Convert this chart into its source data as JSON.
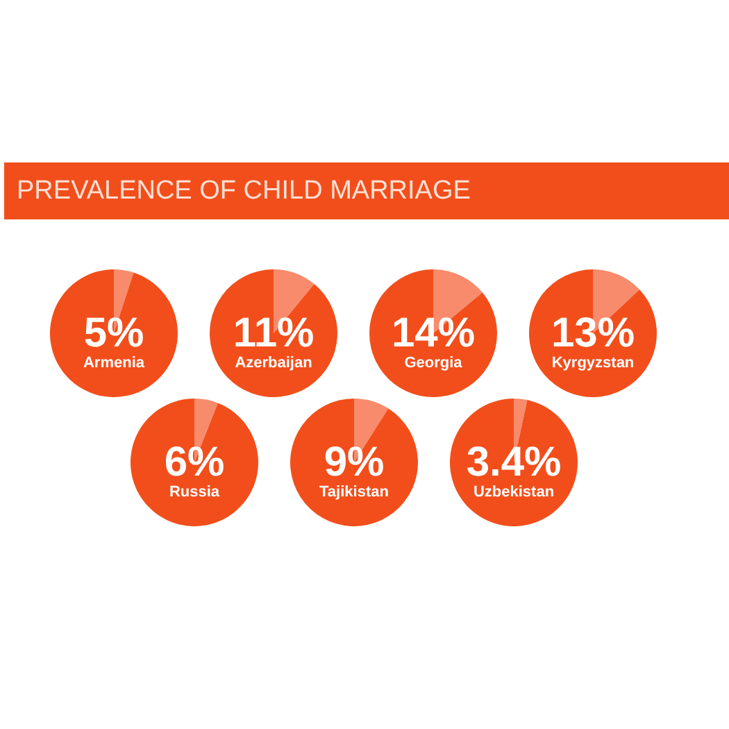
{
  "chart_data": [
    {
      "type": "other",
      "title": "PREVALENCE OF CHILD MARRIAGE",
      "color": "#f24e1b"
    },
    {
      "type": "pie",
      "title": "Armenia",
      "categories": [
        null,
        null
      ],
      "values": [
        5,
        95
      ],
      "colors": [
        "#f88b6c",
        "#f24e1b"
      ],
      "value_labels": [
        "5%",
        null
      ]
    },
    {
      "type": "pie",
      "title": "Azerbaijan",
      "categories": [
        null,
        null
      ],
      "values": [
        11,
        89
      ],
      "colors": [
        "#f88b6c",
        "#f24e1b"
      ],
      "value_labels": [
        "11%",
        null
      ]
    },
    {
      "type": "pie",
      "title": "Georgia",
      "categories": [
        null,
        null
      ],
      "values": [
        14,
        86
      ],
      "colors": [
        "#f88b6c",
        "#f24e1b"
      ],
      "value_labels": [
        "14%",
        null
      ]
    },
    {
      "type": "pie",
      "title": "Kyrgyzstan",
      "categories": [
        null,
        null
      ],
      "values": [
        13,
        87
      ],
      "colors": [
        "#f88b6c",
        "#f24e1b"
      ],
      "value_labels": [
        "13%",
        null
      ]
    },
    {
      "type": "pie",
      "title": "Russia",
      "categories": [
        null,
        null
      ],
      "values": [
        6,
        94
      ],
      "colors": [
        "#f88b6c",
        "#f24e1b"
      ],
      "value_labels": [
        "6%",
        null
      ]
    },
    {
      "type": "pie",
      "title": "Tajikistan",
      "categories": [
        null,
        null
      ],
      "values": [
        9,
        91
      ],
      "colors": [
        "#f88b6c",
        "#f24e1b"
      ],
      "value_labels": [
        "9%",
        null
      ]
    },
    {
      "type": "pie",
      "title": "Uzbekistan",
      "categories": [
        null,
        null
      ],
      "values": [
        3.4,
        96.6
      ],
      "colors": [
        "#f88b6c",
        "#f24e1b"
      ],
      "value_labels": [
        "3.4%",
        null
      ]
    }
  ]
}
